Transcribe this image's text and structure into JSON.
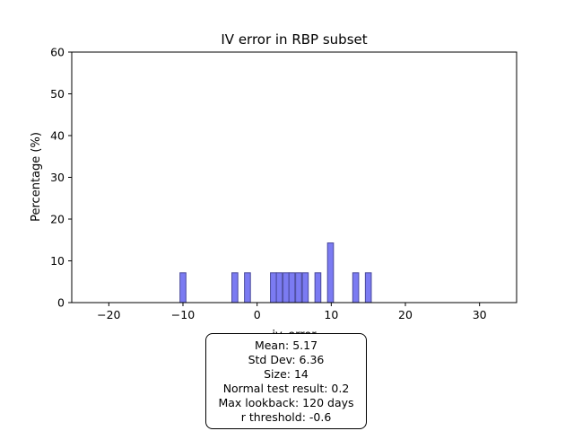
{
  "chart_data": {
    "type": "bar",
    "title": "IV error in RBP subset",
    "xlabel": "iv_error",
    "ylabel": "Percentage (%)",
    "xlim": [
      -25,
      35
    ],
    "ylim": [
      0,
      60
    ],
    "xticks": [
      -20,
      -10,
      0,
      10,
      20,
      30
    ],
    "yticks": [
      0,
      10,
      20,
      30,
      40,
      50,
      60
    ],
    "bin_width": 0.8,
    "bar_color": "#7b7bf2",
    "bar_edge_color": "#4a4a9c",
    "bins": [
      {
        "x": -10.0,
        "value": 7.14
      },
      {
        "x": -3.0,
        "value": 7.14
      },
      {
        "x": -1.3,
        "value": 7.14
      },
      {
        "x": 2.2,
        "value": 7.14
      },
      {
        "x": 3.0,
        "value": 7.14
      },
      {
        "x": 3.9,
        "value": 7.14
      },
      {
        "x": 4.7,
        "value": 7.14
      },
      {
        "x": 5.6,
        "value": 7.14
      },
      {
        "x": 6.5,
        "value": 7.14
      },
      {
        "x": 8.2,
        "value": 7.14
      },
      {
        "x": 9.9,
        "value": 14.29
      },
      {
        "x": 13.3,
        "value": 7.14
      },
      {
        "x": 15.0,
        "value": 7.14
      }
    ]
  },
  "stats": {
    "mean": "Mean: 5.17",
    "std": "Std Dev: 6.36",
    "size": "Size: 14",
    "normal_test": "Normal test result: 0.2",
    "lookback": "Max lookback: 120 days",
    "r_threshold": "r threshold: -0.6"
  }
}
